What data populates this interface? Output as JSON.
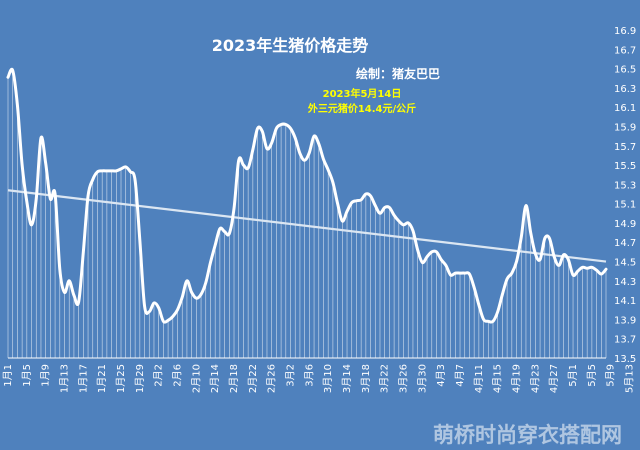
{
  "chart_data": {
    "type": "line",
    "title": "2023年生猪价格走势",
    "subtitle": "绘制：猪友巴巴",
    "annotation": [
      "2023年5月14日",
      "外三元猪价14.4元/公斤"
    ],
    "watermark": "萌桥时尚穿衣搭配网",
    "ylim": [
      13.5,
      16.9
    ],
    "yticks": [
      "16.9",
      "16.7",
      "16.5",
      "16.3",
      "16.1",
      "15.9",
      "15.7",
      "15.5",
      "15.3",
      "15.1",
      "14.9",
      "14.7",
      "14.5",
      "14.3",
      "14.1",
      "13.9",
      "13.7",
      "13.5"
    ],
    "xticks": [
      "1月1",
      "1月5",
      "1月9",
      "1月13",
      "1月17",
      "1月21",
      "1月25",
      "1月29",
      "2月2",
      "2月6",
      "2月10",
      "2月14",
      "2月18",
      "2月22",
      "2月26",
      "3月2",
      "3月6",
      "3月10",
      "3月14",
      "3月18",
      "3月22",
      "3月26",
      "3月30",
      "4月3",
      "4月7",
      "4月11",
      "4月15",
      "4月19",
      "4月23",
      "4月27",
      "5月1",
      "5月5",
      "5月9",
      "5月13"
    ],
    "grid": false,
    "trendline": true,
    "colors": {
      "background": "#4f81bd",
      "line": "#ffffff",
      "trend": "#dbe6f2",
      "title": "#ffffff",
      "annotation": "#ffff00"
    },
    "series": [
      {
        "values": [
          16.41,
          16.48,
          16.12,
          15.5,
          15.12,
          14.88,
          15.15,
          15.78,
          15.52,
          15.15,
          15.2,
          14.42,
          14.18,
          14.3,
          14.15,
          14.08,
          14.6,
          15.18,
          15.35,
          15.43,
          15.44,
          15.44,
          15.44,
          15.44,
          15.46,
          15.48,
          15.43,
          15.34,
          14.72,
          14.04,
          13.98,
          14.07,
          14.02,
          13.88,
          13.89,
          13.93,
          14.0,
          14.13,
          14.3,
          14.18,
          14.12,
          14.16,
          14.28,
          14.49,
          14.67,
          14.84,
          14.81,
          14.79,
          15.05,
          15.55,
          15.5,
          15.47,
          15.66,
          15.88,
          15.85,
          15.67,
          15.73,
          15.88,
          15.92,
          15.92,
          15.88,
          15.78,
          15.62,
          15.55,
          15.63,
          15.8,
          15.72,
          15.56,
          15.45,
          15.32,
          15.1,
          14.92,
          15.02,
          15.11,
          15.13,
          15.14,
          15.2,
          15.18,
          15.08,
          15.0,
          15.06,
          15.06,
          14.98,
          14.92,
          14.88,
          14.9,
          14.82,
          14.62,
          14.49,
          14.55,
          14.6,
          14.6,
          14.52,
          14.46,
          14.36,
          14.38,
          14.38,
          14.38,
          14.37,
          14.23,
          14.05,
          13.9,
          13.88,
          13.88,
          13.98,
          14.16,
          14.32,
          14.38,
          14.5,
          14.75,
          15.08,
          14.8,
          14.58,
          14.52,
          14.74,
          14.74,
          14.55,
          14.46,
          14.57,
          14.52,
          14.36,
          14.4,
          14.44,
          14.43,
          14.44,
          14.41,
          14.37,
          14.42
        ]
      }
    ]
  }
}
